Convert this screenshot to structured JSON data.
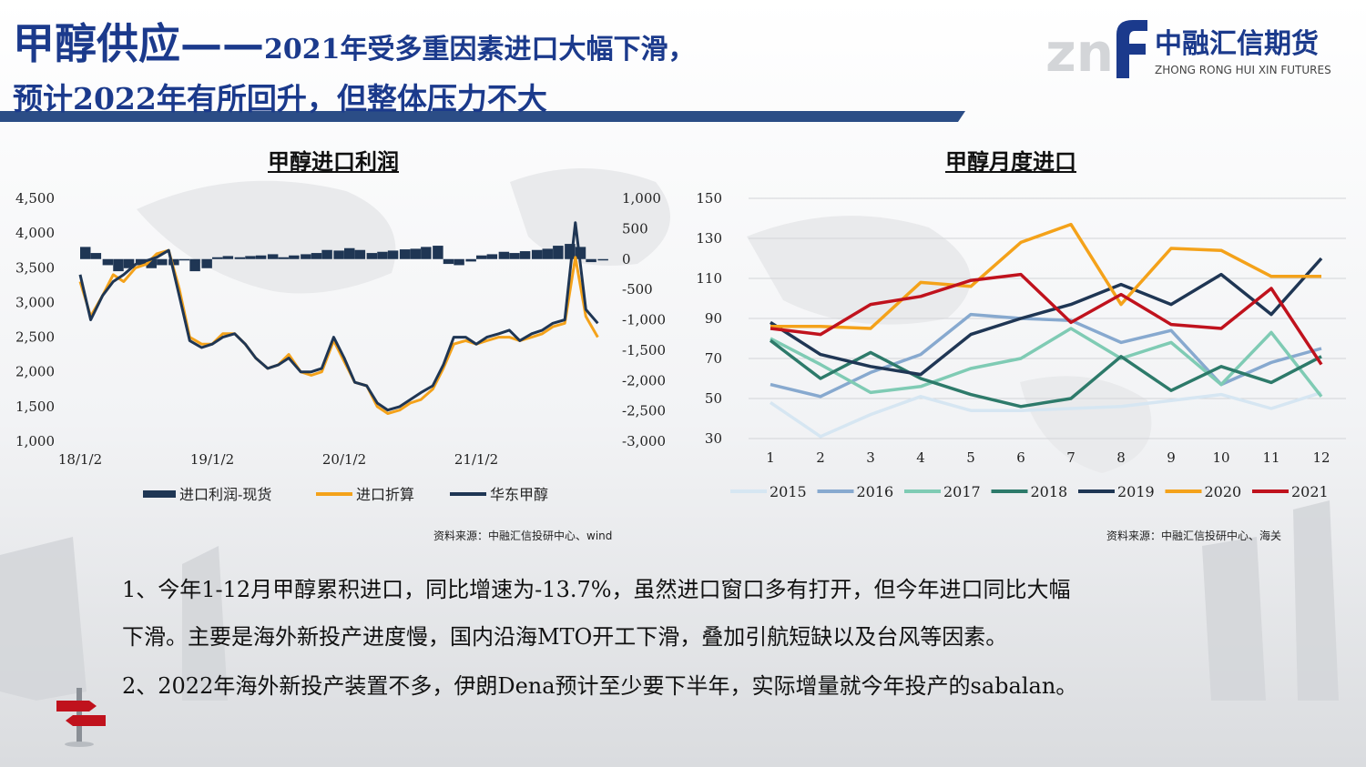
{
  "title": {
    "main": "甲醇供应——",
    "sub": "2021年受多重因素进口大幅下滑，",
    "line2": "预计2022年有所回升，但整体压力不大"
  },
  "logo": {
    "mark": "znf",
    "cn": "中融汇信期货",
    "en": "ZHONG RONG HUI XIN FUTURES"
  },
  "colors": {
    "title_blue": "#1b3a8c",
    "navy": "#1f3654",
    "orange": "#f4a21a",
    "red": "#c0121d"
  },
  "chart_data": [
    {
      "type": "line",
      "title": "甲醇进口利润",
      "left_axis": {
        "ylim": [
          1000,
          4500
        ],
        "ticks": [
          "4,500",
          "4,000",
          "3,500",
          "3,000",
          "2,500",
          "2,000",
          "1,500",
          "1,000"
        ]
      },
      "right_axis": {
        "ylim": [
          -3000,
          1000
        ],
        "ticks": [
          "1,000",
          "500",
          "0",
          "-500",
          "-1,000",
          "-1,500",
          "-2,000",
          "-2,500",
          "-3,000"
        ]
      },
      "x_ticks": [
        "18/1/2",
        "19/1/2",
        "20/1/2",
        "21/1/2"
      ],
      "x_range": [
        2018.0,
        2022.0
      ],
      "series": [
        {
          "name": "进口利润-现货",
          "axis": "right",
          "kind": "bar",
          "color": "#1f3654",
          "x": [
            2018.0,
            2018.08,
            2018.17,
            2018.25,
            2018.33,
            2018.42,
            2018.5,
            2018.58,
            2018.67,
            2018.75,
            2018.83,
            2018.92,
            2019.0,
            2019.08,
            2019.17,
            2019.25,
            2019.33,
            2019.42,
            2019.5,
            2019.58,
            2019.67,
            2019.75,
            2019.83,
            2019.92,
            2020.0,
            2020.08,
            2020.17,
            2020.25,
            2020.33,
            2020.42,
            2020.5,
            2020.58,
            2020.67,
            2020.75,
            2020.83,
            2020.92,
            2021.0,
            2021.08,
            2021.17,
            2021.25,
            2021.33,
            2021.42,
            2021.5,
            2021.58,
            2021.67,
            2021.75,
            2021.83,
            2021.92
          ],
          "values": [
            200,
            100,
            -100,
            -200,
            -150,
            -100,
            -150,
            -100,
            -100,
            0,
            -200,
            -150,
            30,
            50,
            30,
            50,
            60,
            80,
            30,
            60,
            80,
            100,
            150,
            140,
            180,
            150,
            100,
            120,
            140,
            160,
            170,
            200,
            220,
            -80,
            -100,
            -40,
            60,
            80,
            120,
            100,
            130,
            150,
            170,
            220,
            250,
            200,
            -50,
            0
          ]
        },
        {
          "name": "进口折算",
          "axis": "left",
          "color": "#f4a21a",
          "x": [
            2018.0,
            2018.08,
            2018.17,
            2018.25,
            2018.33,
            2018.42,
            2018.5,
            2018.58,
            2018.67,
            2018.75,
            2018.83,
            2018.92,
            2019.0,
            2019.08,
            2019.17,
            2019.25,
            2019.33,
            2019.42,
            2019.5,
            2019.58,
            2019.67,
            2019.75,
            2019.83,
            2019.92,
            2020.0,
            2020.08,
            2020.17,
            2020.25,
            2020.33,
            2020.42,
            2020.5,
            2020.58,
            2020.67,
            2020.75,
            2020.83,
            2020.92,
            2021.0,
            2021.08,
            2021.17,
            2021.25,
            2021.33,
            2021.42,
            2021.5,
            2021.58,
            2021.67,
            2021.75,
            2021.83,
            2021.92
          ],
          "values": [
            3300,
            2800,
            3100,
            3400,
            3300,
            3500,
            3550,
            3700,
            3750,
            3200,
            2500,
            2400,
            2400,
            2550,
            2550,
            2400,
            2200,
            2050,
            2100,
            2250,
            2000,
            1950,
            2000,
            2450,
            2150,
            1850,
            1800,
            1500,
            1400,
            1450,
            1550,
            1600,
            1750,
            2050,
            2400,
            2450,
            2400,
            2450,
            2500,
            2500,
            2450,
            2500,
            2550,
            2650,
            2700,
            3650,
            2800,
            2500
          ]
        },
        {
          "name": "华东甲醇",
          "axis": "left",
          "color": "#1f3654",
          "x": [
            2018.0,
            2018.08,
            2018.17,
            2018.25,
            2018.33,
            2018.42,
            2018.5,
            2018.58,
            2018.67,
            2018.75,
            2018.83,
            2018.92,
            2019.0,
            2019.08,
            2019.17,
            2019.25,
            2019.33,
            2019.42,
            2019.5,
            2019.58,
            2019.67,
            2019.75,
            2019.83,
            2019.92,
            2020.0,
            2020.08,
            2020.17,
            2020.25,
            2020.33,
            2020.42,
            2020.5,
            2020.58,
            2020.67,
            2020.75,
            2020.83,
            2020.92,
            2021.0,
            2021.08,
            2021.17,
            2021.25,
            2021.33,
            2021.42,
            2021.5,
            2021.58,
            2021.67,
            2021.75,
            2021.83,
            2021.92
          ],
          "values": [
            3400,
            2750,
            3100,
            3300,
            3400,
            3550,
            3600,
            3650,
            3750,
            3100,
            2450,
            2350,
            2400,
            2500,
            2550,
            2400,
            2200,
            2050,
            2100,
            2200,
            2000,
            2000,
            2050,
            2500,
            2200,
            1850,
            1800,
            1550,
            1450,
            1500,
            1600,
            1700,
            1800,
            2100,
            2500,
            2500,
            2400,
            2500,
            2550,
            2600,
            2450,
            2550,
            2600,
            2700,
            2750,
            4150,
            2900,
            2700
          ]
        }
      ],
      "legend": "bottom"
    },
    {
      "type": "line",
      "title": "甲醇月度进口",
      "categories": [
        "1",
        "2",
        "3",
        "4",
        "5",
        "6",
        "7",
        "8",
        "9",
        "10",
        "11",
        "12"
      ],
      "ylim": [
        30,
        150
      ],
      "y_ticks": [
        "150",
        "130",
        "110",
        "90",
        "70",
        "50",
        "30"
      ],
      "legend": "bottom",
      "series": [
        {
          "name": "2015",
          "color": "#d6e6f2",
          "values": [
            48,
            31,
            42,
            51,
            44,
            44,
            45,
            46,
            49,
            52,
            45,
            53
          ]
        },
        {
          "name": "2016",
          "color": "#87a9cf",
          "values": [
            57,
            51,
            63,
            72,
            92,
            90,
            89,
            78,
            84,
            57,
            68,
            75
          ]
        },
        {
          "name": "2017",
          "color": "#7fcbb4",
          "values": [
            80,
            67,
            53,
            56,
            65,
            70,
            85,
            70,
            78,
            57,
            83,
            51
          ]
        },
        {
          "name": "2018",
          "color": "#2d7a6a",
          "values": [
            79,
            60,
            73,
            60,
            52,
            46,
            50,
            71,
            54,
            66,
            58,
            71
          ]
        },
        {
          "name": "2019",
          "color": "#1f3654",
          "values": [
            88,
            72,
            66,
            62,
            82,
            90,
            97,
            107,
            97,
            112,
            92,
            120
          ]
        },
        {
          "name": "2020",
          "color": "#f4a21a",
          "values": [
            86,
            86,
            85,
            108,
            106,
            128,
            137,
            97,
            125,
            124,
            111,
            111
          ]
        },
        {
          "name": "2021",
          "color": "#c0121d",
          "values": [
            85,
            82,
            97,
            101,
            109,
            112,
            88,
            102,
            87,
            85,
            105,
            67
          ]
        }
      ]
    }
  ],
  "sources": {
    "left": "资料来源：中融汇信投研中心、wind",
    "right": "资料来源：中融汇信投研中心、海关"
  },
  "bullets": {
    "p1_line1": "1、今年1-12月甲醇累积进口，同比增速为-13.7%，虽然进口窗口多有打开，但今年进口同比大幅",
    "p1_line2": "下滑。主要是海外新投产进度慢，国内沿海MTO开工下滑，叠加引航短缺以及台风等因素。",
    "p2": "2、2022年海外新投产装置不多，伊朗Dena预计至少要下半年，实际增量就今年投产的sabalan。"
  }
}
